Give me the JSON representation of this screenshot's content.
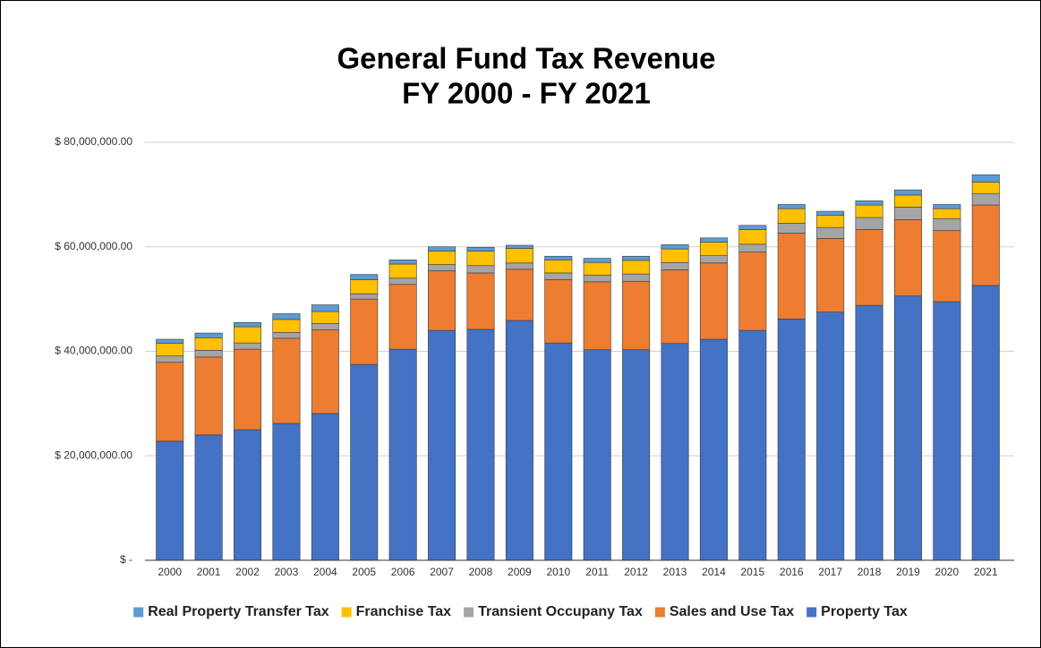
{
  "chart_data": {
    "type": "stacked_bar",
    "title": [
      "General Fund Tax Revenue",
      "FY 2000 - FY 2021"
    ],
    "categories": [
      "2000",
      "2001",
      "2002",
      "2003",
      "2004",
      "2005",
      "2006",
      "2007",
      "2008",
      "2009",
      "2010",
      "2011",
      "2012",
      "2013",
      "2014",
      "2015",
      "2016",
      "2017",
      "2018",
      "2019",
      "2020",
      "2021"
    ],
    "series": [
      {
        "name": "Real Property Transfer Tax",
        "color": "#5b9bd5",
        "values": [
          800000,
          900000,
          800000,
          1100000,
          1300000,
          1000000,
          800000,
          800000,
          700000,
          600000,
          700000,
          800000,
          800000,
          800000,
          800000,
          800000,
          800000,
          800000,
          800000,
          1000000,
          800000,
          1400000
        ]
      },
      {
        "name": "Franchise Tax",
        "color": "#ffc000",
        "values": [
          2400000,
          2400000,
          3100000,
          2500000,
          2300000,
          2700000,
          2700000,
          2600000,
          2800000,
          2800000,
          2500000,
          2400000,
          2600000,
          2600000,
          2600000,
          2800000,
          2800000,
          2300000,
          2400000,
          2300000,
          1900000,
          2200000
        ]
      },
      {
        "name": "Transient Occupany Tax",
        "color": "#a5a5a5",
        "values": [
          1200000,
          1300000,
          1200000,
          1100000,
          1200000,
          1000000,
          1200000,
          1200000,
          1400000,
          1200000,
          1300000,
          1300000,
          1400000,
          1400000,
          1400000,
          1500000,
          1900000,
          2100000,
          2300000,
          2400000,
          2300000,
          2200000
        ]
      },
      {
        "name": "Sales and Use Tax",
        "color": "#ed7d31",
        "values": [
          15100000,
          14900000,
          15400000,
          16300000,
          16000000,
          12500000,
          12400000,
          11400000,
          10800000,
          9800000,
          12100000,
          13000000,
          13100000,
          14100000,
          14600000,
          15000000,
          16400000,
          14100000,
          14500000,
          14600000,
          13600000,
          15400000
        ]
      },
      {
        "name": "Property Tax",
        "color": "#4472c4",
        "values": [
          22800000,
          24000000,
          25000000,
          26200000,
          28100000,
          37500000,
          40400000,
          44000000,
          44200000,
          45900000,
          41600000,
          40300000,
          40300000,
          41500000,
          42300000,
          44000000,
          46200000,
          47500000,
          48800000,
          50600000,
          49500000,
          52600000
        ]
      }
    ],
    "ylim": [
      0,
      80000000
    ],
    "yticks": [
      {
        "value": 0,
        "label": "$ -"
      },
      {
        "value": 20000000,
        "label": "$ 20,000,000.00"
      },
      {
        "value": 40000000,
        "label": "$ 40,000,000.00"
      },
      {
        "value": 60000000,
        "label": "$ 60,000,000.00"
      },
      {
        "value": 80000000,
        "label": "$ 80,000,000.00"
      }
    ],
    "grid": true,
    "legend": "bottom"
  }
}
